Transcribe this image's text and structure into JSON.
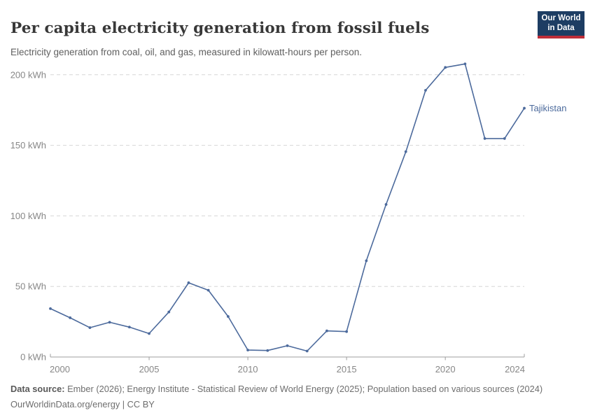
{
  "header": {
    "title": "Per capita electricity generation from fossil fuels",
    "subtitle": "Electricity generation from coal, oil, and gas, measured in kilowatt-hours per person."
  },
  "logo": {
    "line1": "Our World",
    "line2": "in Data",
    "bg_color": "#1d3d63",
    "bar_color": "#be2e39"
  },
  "chart_data": {
    "type": "line",
    "title": "Per capita electricity generation from fossil fuels",
    "xlabel": "",
    "ylabel": "kilowatt-hours per person",
    "unit": "kWh",
    "x": [
      2000,
      2001,
      2002,
      2003,
      2004,
      2005,
      2006,
      2007,
      2008,
      2009,
      2010,
      2011,
      2012,
      2013,
      2014,
      2015,
      2016,
      2017,
      2018,
      2019,
      2020,
      2021,
      2022,
      2023,
      2024
    ],
    "series": [
      {
        "name": "Tajikistan",
        "color": "#4c6a9c",
        "values": [
          34.3,
          27.8,
          20.8,
          24.6,
          21.2,
          16.6,
          31.9,
          52.6,
          47.3,
          28.7,
          4.9,
          4.6,
          8.0,
          4.2,
          18.5,
          18.0,
          68.2,
          108.1,
          145.5,
          189.0,
          205.2,
          207.7,
          154.8,
          154.8,
          176.3
        ]
      }
    ],
    "ylim": [
      0,
      210
    ],
    "yticks": [
      0,
      50,
      100,
      150,
      200
    ],
    "ytick_suffix": " kWh",
    "xticks": [
      2000,
      2005,
      2010,
      2015,
      2020,
      2024
    ],
    "legend_position": "end-of-line-label",
    "grid": "horizontal-dashed",
    "grid_color": "#d6d6d6",
    "axis_line_color": "#9e9e9e",
    "tick_label_color": "#878787"
  },
  "footer": {
    "datasource_label": "Data source:",
    "datasource_text": " Ember (2026); Energy Institute - Statistical Review of World Energy (2025); Population based on various sources (2024)",
    "license_line": "OurWorldinData.org/energy | CC BY"
  }
}
